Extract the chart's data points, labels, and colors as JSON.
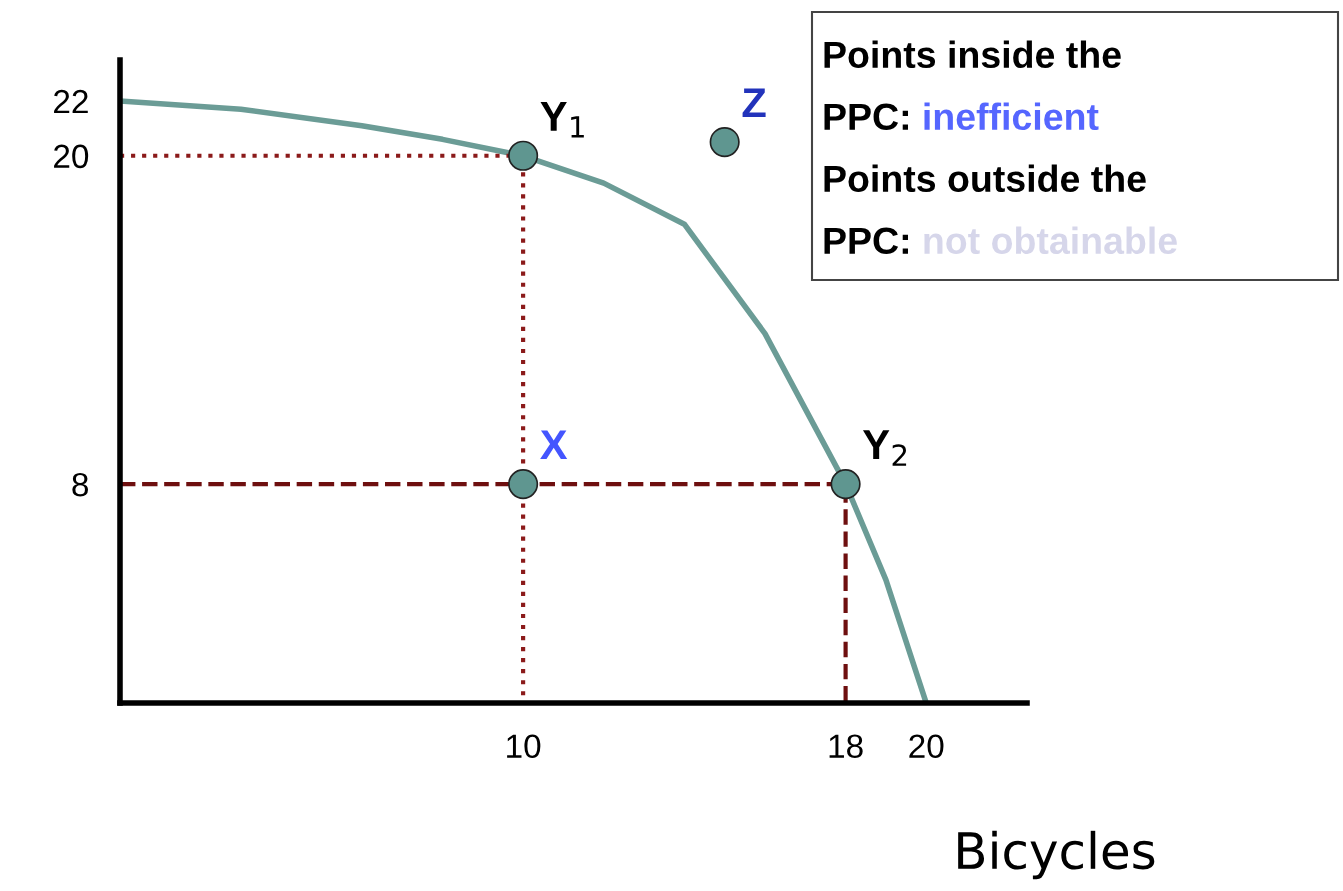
{
  "chart_data": {
    "type": "line",
    "xlabel": "Bicycles",
    "xlim": [
      0,
      22.5
    ],
    "ylim": [
      0,
      23.5
    ],
    "xticks": [
      10,
      18,
      20
    ],
    "yticks": [
      8,
      20,
      22
    ],
    "grid": false,
    "series": [
      {
        "color": "#6b9c96",
        "line_style": "solid",
        "marker": "none",
        "x": [
          0,
          3,
          6,
          8,
          10,
          12,
          14,
          16,
          18,
          19,
          20
        ],
        "values": [
          22,
          21.7,
          21.1,
          20.6,
          20,
          19,
          17.5,
          13.5,
          8,
          4.5,
          0
        ]
      },
      {
        "color": "#8b1a1a",
        "line_style": "dotted",
        "marker": "none",
        "x": [
          0,
          10,
          10
        ],
        "values": [
          20,
          20,
          0
        ]
      },
      {
        "color": "#6e0f0f",
        "line_style": "dashed",
        "marker": "none",
        "x": [
          0,
          18,
          18
        ],
        "values": [
          8,
          8,
          0
        ]
      },
      {
        "type": "scatter",
        "color": "#5f9690",
        "marker": "circle",
        "x": [
          10,
          18,
          10,
          15
        ],
        "values": [
          20,
          8,
          8,
          20.5
        ]
      }
    ],
    "annotations": [
      {
        "text": "Y$_{1}$",
        "x": 10,
        "y": 20
      },
      {
        "text": "Y$_{2}$",
        "x": 18,
        "y": 8
      },
      {
        "text": "X",
        "x": 10,
        "y": 8
      },
      {
        "text": "Z",
        "x": 15,
        "y": 20.5
      },
      "Points inside the PPC:",
      "inefficient",
      "Points outside the PPC:",
      "not obtainable"
    ]
  }
}
